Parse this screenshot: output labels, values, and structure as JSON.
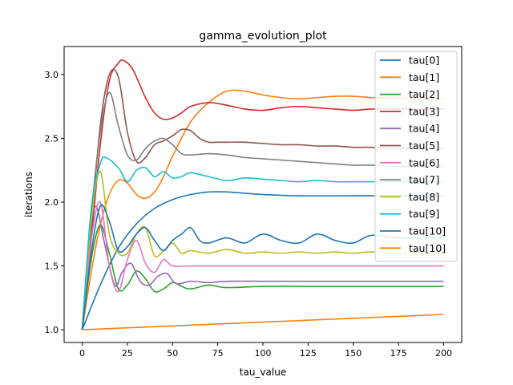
{
  "chart_data": {
    "type": "line",
    "title": "gamma_evolution_plot",
    "xlabel": "tau_value",
    "ylabel": "iterations",
    "xlim": [
      -10,
      210
    ],
    "ylim": [
      0.9,
      3.22
    ],
    "xticks": [
      0,
      25,
      50,
      75,
      100,
      125,
      150,
      175,
      200
    ],
    "yticks": [
      1.0,
      1.5,
      2.0,
      2.5,
      3.0
    ],
    "grid": false,
    "legend_position": "top-right",
    "series": [
      {
        "name": "tau[0]",
        "color": "#1f77b4",
        "x": [
          0,
          10,
          20,
          30,
          40,
          50,
          60,
          70,
          80,
          90,
          100,
          120,
          150,
          175,
          200
        ],
        "y": [
          1.0,
          1.35,
          1.64,
          1.83,
          1.95,
          2.02,
          2.06,
          2.08,
          2.08,
          2.07,
          2.06,
          2.05,
          2.05,
          2.05,
          2.05
        ]
      },
      {
        "name": "tau[1]",
        "color": "#ff7f0e",
        "x": [
          0,
          5,
          10,
          15,
          20,
          25,
          30,
          35,
          40,
          45,
          50,
          60,
          70,
          80,
          90,
          100,
          110,
          120,
          130,
          140,
          150,
          160,
          170,
          180,
          190,
          200
        ],
        "y": [
          1.0,
          1.45,
          1.82,
          2.06,
          2.17,
          2.15,
          2.06,
          2.03,
          2.08,
          2.2,
          2.36,
          2.63,
          2.78,
          2.87,
          2.87,
          2.84,
          2.82,
          2.81,
          2.82,
          2.83,
          2.83,
          2.82,
          2.82,
          2.81,
          2.81,
          2.81
        ]
      },
      {
        "name": "tau[2]",
        "color": "#2ca02c",
        "x": [
          0,
          5,
          10,
          15,
          20,
          25,
          30,
          35,
          40,
          45,
          50,
          55,
          60,
          70,
          80,
          100,
          125,
          150,
          175,
          200
        ],
        "y": [
          1.0,
          1.55,
          1.82,
          1.6,
          1.32,
          1.35,
          1.46,
          1.4,
          1.3,
          1.32,
          1.37,
          1.34,
          1.32,
          1.35,
          1.33,
          1.34,
          1.34,
          1.34,
          1.34,
          1.34
        ]
      },
      {
        "name": "tau[3]",
        "color": "#d62728",
        "x": [
          0,
          5,
          10,
          15,
          20,
          23,
          28,
          35,
          40,
          45,
          50,
          55,
          60,
          70,
          80,
          90,
          100,
          110,
          120,
          130,
          140,
          150,
          160,
          175,
          200
        ],
        "y": [
          1.0,
          1.7,
          2.45,
          2.95,
          3.09,
          3.11,
          3.04,
          2.82,
          2.7,
          2.65,
          2.66,
          2.7,
          2.75,
          2.78,
          2.76,
          2.73,
          2.72,
          2.74,
          2.75,
          2.74,
          2.73,
          2.72,
          2.73,
          2.73,
          2.73
        ]
      },
      {
        "name": "tau[4]",
        "color": "#9467bd",
        "x": [
          0,
          5,
          8,
          12,
          18,
          22,
          27,
          32,
          37,
          42,
          47,
          52,
          60,
          70,
          80,
          100,
          125,
          150,
          175,
          200
        ],
        "y": [
          1.0,
          1.8,
          1.96,
          1.7,
          1.35,
          1.45,
          1.52,
          1.38,
          1.35,
          1.42,
          1.44,
          1.36,
          1.38,
          1.37,
          1.38,
          1.38,
          1.38,
          1.38,
          1.38,
          1.38
        ]
      },
      {
        "name": "tau[5]",
        "color": "#8c564b",
        "x": [
          0,
          5,
          10,
          15,
          20,
          25,
          30,
          35,
          40,
          45,
          50,
          55,
          60,
          65,
          70,
          75,
          80,
          90,
          100,
          110,
          120,
          130,
          140,
          150,
          160,
          175,
          200
        ],
        "y": [
          1.0,
          1.8,
          2.6,
          3.0,
          2.98,
          2.55,
          2.32,
          2.35,
          2.45,
          2.48,
          2.52,
          2.57,
          2.56,
          2.5,
          2.47,
          2.47,
          2.47,
          2.47,
          2.46,
          2.45,
          2.45,
          2.44,
          2.44,
          2.43,
          2.43,
          2.42,
          2.42
        ]
      },
      {
        "name": "tau[6]",
        "color": "#e377c2",
        "x": [
          0,
          5,
          10,
          15,
          20,
          25,
          30,
          35,
          40,
          45,
          50,
          60,
          70,
          80,
          100,
          125,
          150,
          175,
          200
        ],
        "y": [
          1.0,
          1.7,
          2.0,
          1.5,
          1.3,
          1.55,
          1.7,
          1.52,
          1.45,
          1.55,
          1.5,
          1.5,
          1.5,
          1.5,
          1.5,
          1.5,
          1.5,
          1.5,
          1.5
        ]
      },
      {
        "name": "tau[7]",
        "color": "#7f7f7f",
        "x": [
          0,
          5,
          10,
          15,
          20,
          25,
          30,
          35,
          40,
          45,
          50,
          55,
          60,
          70,
          80,
          90,
          100,
          110,
          120,
          130,
          140,
          150,
          160,
          175,
          200
        ],
        "y": [
          1.0,
          1.9,
          2.55,
          2.86,
          2.6,
          2.37,
          2.33,
          2.42,
          2.48,
          2.5,
          2.45,
          2.38,
          2.37,
          2.38,
          2.37,
          2.35,
          2.34,
          2.33,
          2.32,
          2.31,
          2.3,
          2.29,
          2.29,
          2.28,
          2.28
        ]
      },
      {
        "name": "tau[8]",
        "color": "#bcbd22",
        "x": [
          0,
          5,
          10,
          15,
          20,
          25,
          30,
          35,
          40,
          45,
          50,
          55,
          60,
          70,
          80,
          90,
          100,
          110,
          120,
          130,
          140,
          150,
          160,
          175,
          200
        ],
        "y": [
          1.0,
          1.85,
          2.24,
          1.75,
          1.6,
          1.6,
          1.75,
          1.8,
          1.58,
          1.62,
          1.68,
          1.6,
          1.62,
          1.6,
          1.63,
          1.6,
          1.61,
          1.6,
          1.61,
          1.6,
          1.61,
          1.6,
          1.61,
          1.6,
          1.6
        ]
      },
      {
        "name": "tau[9]",
        "color": "#17becf",
        "x": [
          0,
          5,
          10,
          13,
          20,
          25,
          30,
          35,
          40,
          45,
          50,
          55,
          60,
          70,
          80,
          90,
          100,
          110,
          120,
          130,
          140,
          150,
          160,
          175,
          200
        ],
        "y": [
          1.0,
          1.95,
          2.3,
          2.35,
          2.27,
          2.16,
          2.25,
          2.27,
          2.2,
          2.24,
          2.19,
          2.2,
          2.23,
          2.2,
          2.17,
          2.19,
          2.18,
          2.17,
          2.16,
          2.17,
          2.16,
          2.16,
          2.16,
          2.16,
          2.16
        ]
      },
      {
        "name": "tau[10]",
        "color": "#1f77b4",
        "x": [
          0,
          5,
          10,
          15,
          20,
          25,
          30,
          35,
          40,
          45,
          50,
          55,
          60,
          65,
          70,
          80,
          90,
          100,
          110,
          120,
          130,
          140,
          150,
          160,
          175,
          200
        ],
        "y": [
          1.0,
          1.6,
          1.97,
          1.85,
          1.62,
          1.65,
          1.75,
          1.8,
          1.7,
          1.62,
          1.7,
          1.75,
          1.8,
          1.7,
          1.68,
          1.72,
          1.68,
          1.75,
          1.7,
          1.68,
          1.75,
          1.7,
          1.68,
          1.74,
          1.72,
          1.72
        ]
      },
      {
        "name": "tau[10]",
        "color": "#ff7f0e",
        "x": [
          0,
          200
        ],
        "y": [
          1.0,
          1.12
        ]
      }
    ]
  }
}
